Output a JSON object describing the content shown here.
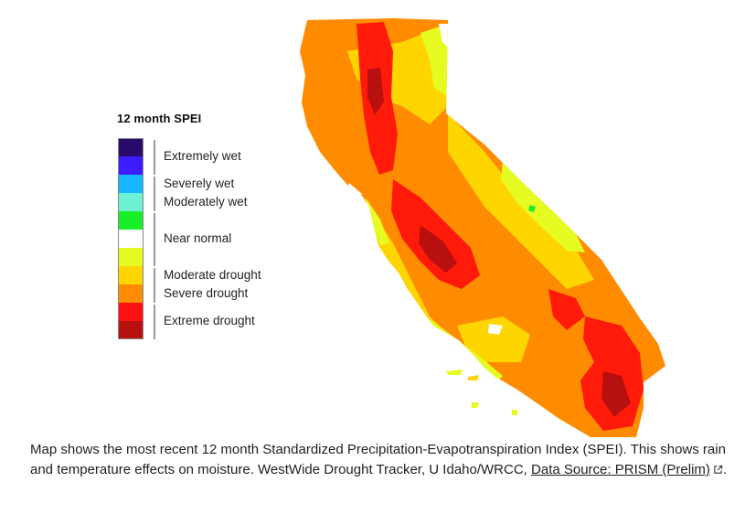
{
  "legend": {
    "title": "12 month SPEI",
    "colors": [
      "#2a0a6b",
      "#3d1cff",
      "#16b6ff",
      "#6ef0d5",
      "#18ef2a",
      "#ffffff",
      "#e6fb21",
      "#ffd500",
      "#ff8c00",
      "#ff1010",
      "#b80f0f"
    ],
    "labels": {
      "extremely_wet": "Extremely wet",
      "severely_wet": "Severely wet",
      "moderately_wet": "Moderately wet",
      "near_normal": "Near normal",
      "moderate_drought": "Moderate drought",
      "severe_drought": "Severe drought",
      "extreme_drought": "Extreme drought"
    }
  },
  "map": {
    "region": "California",
    "palette": {
      "extreme_dark": "#b80f0f",
      "extreme": "#ff1a0a",
      "severe": "#ff8c00",
      "moderate": "#ffd500",
      "abnormal": "#e6fb21",
      "normal": "#ffffff",
      "near_normal_wet": "#18ef2a"
    }
  },
  "caption": {
    "text": "Map shows the most recent 12 month Standardized Precipitation-Evapotranspiration Index (SPEI). This shows rain and temperature effects on moisture. WestWide Drought Tracker, U Idaho/WRCC, ",
    "link_text": "Data Source: PRISM (Prelim)",
    "suffix": "."
  }
}
